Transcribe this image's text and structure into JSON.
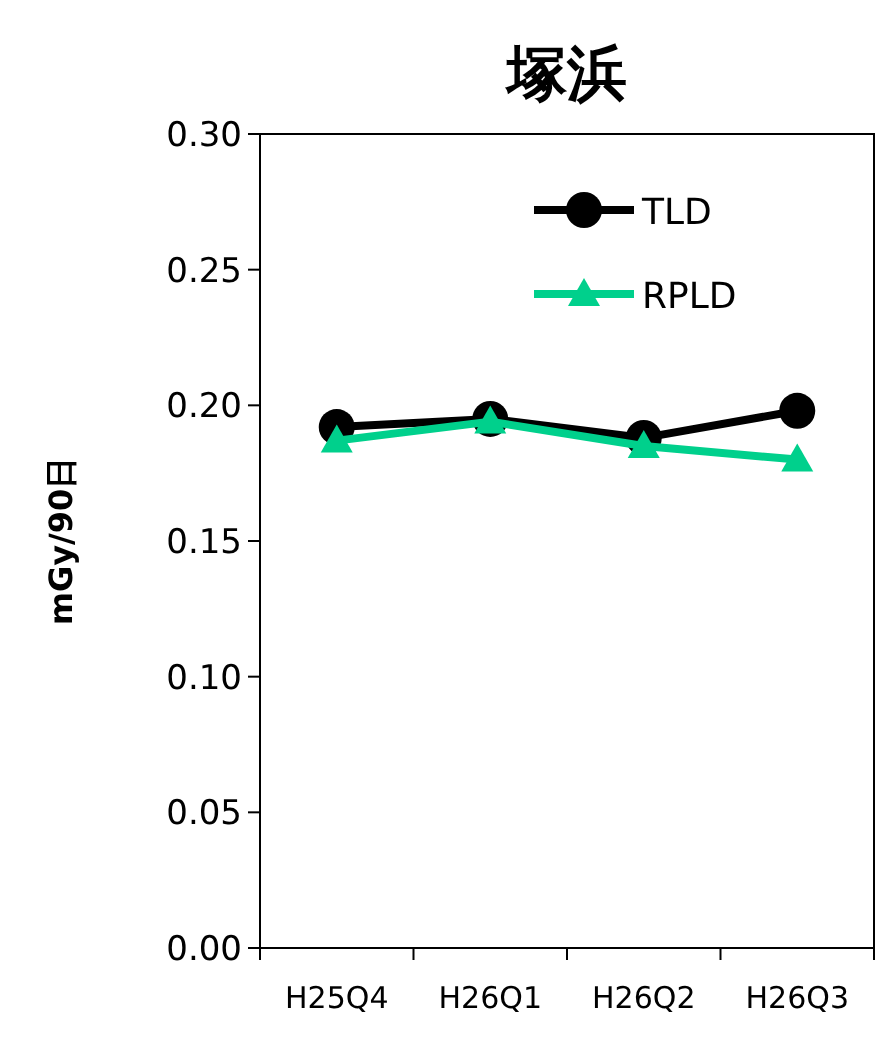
{
  "chart_data": {
    "type": "line",
    "title": "塚浜",
    "ylabel": "mGy/90日",
    "categories": [
      "H25Q4",
      "H26Q1",
      "H26Q2",
      "H26Q3"
    ],
    "series": [
      {
        "name": "TLD",
        "color": "#000000",
        "marker": "circle",
        "values": [
          0.192,
          0.195,
          0.188,
          0.198
        ]
      },
      {
        "name": "RPLD",
        "color": "#00d08c",
        "marker": "triangle",
        "values": [
          0.187,
          0.194,
          0.185,
          0.18
        ]
      }
    ],
    "ylim": [
      0,
      0.3
    ],
    "yticks": [
      {
        "value": 0,
        "label": "0.00"
      },
      {
        "value": 0.05,
        "label": "0.05"
      },
      {
        "value": 0.1,
        "label": "0.10"
      },
      {
        "value": 0.15,
        "label": "0.15"
      },
      {
        "value": 0.2,
        "label": "0.20"
      },
      {
        "value": 0.25,
        "label": "0.25"
      },
      {
        "value": 0.3,
        "label": "0.30"
      }
    ],
    "legend": "top right",
    "grid": false,
    "line_style": "solid"
  }
}
